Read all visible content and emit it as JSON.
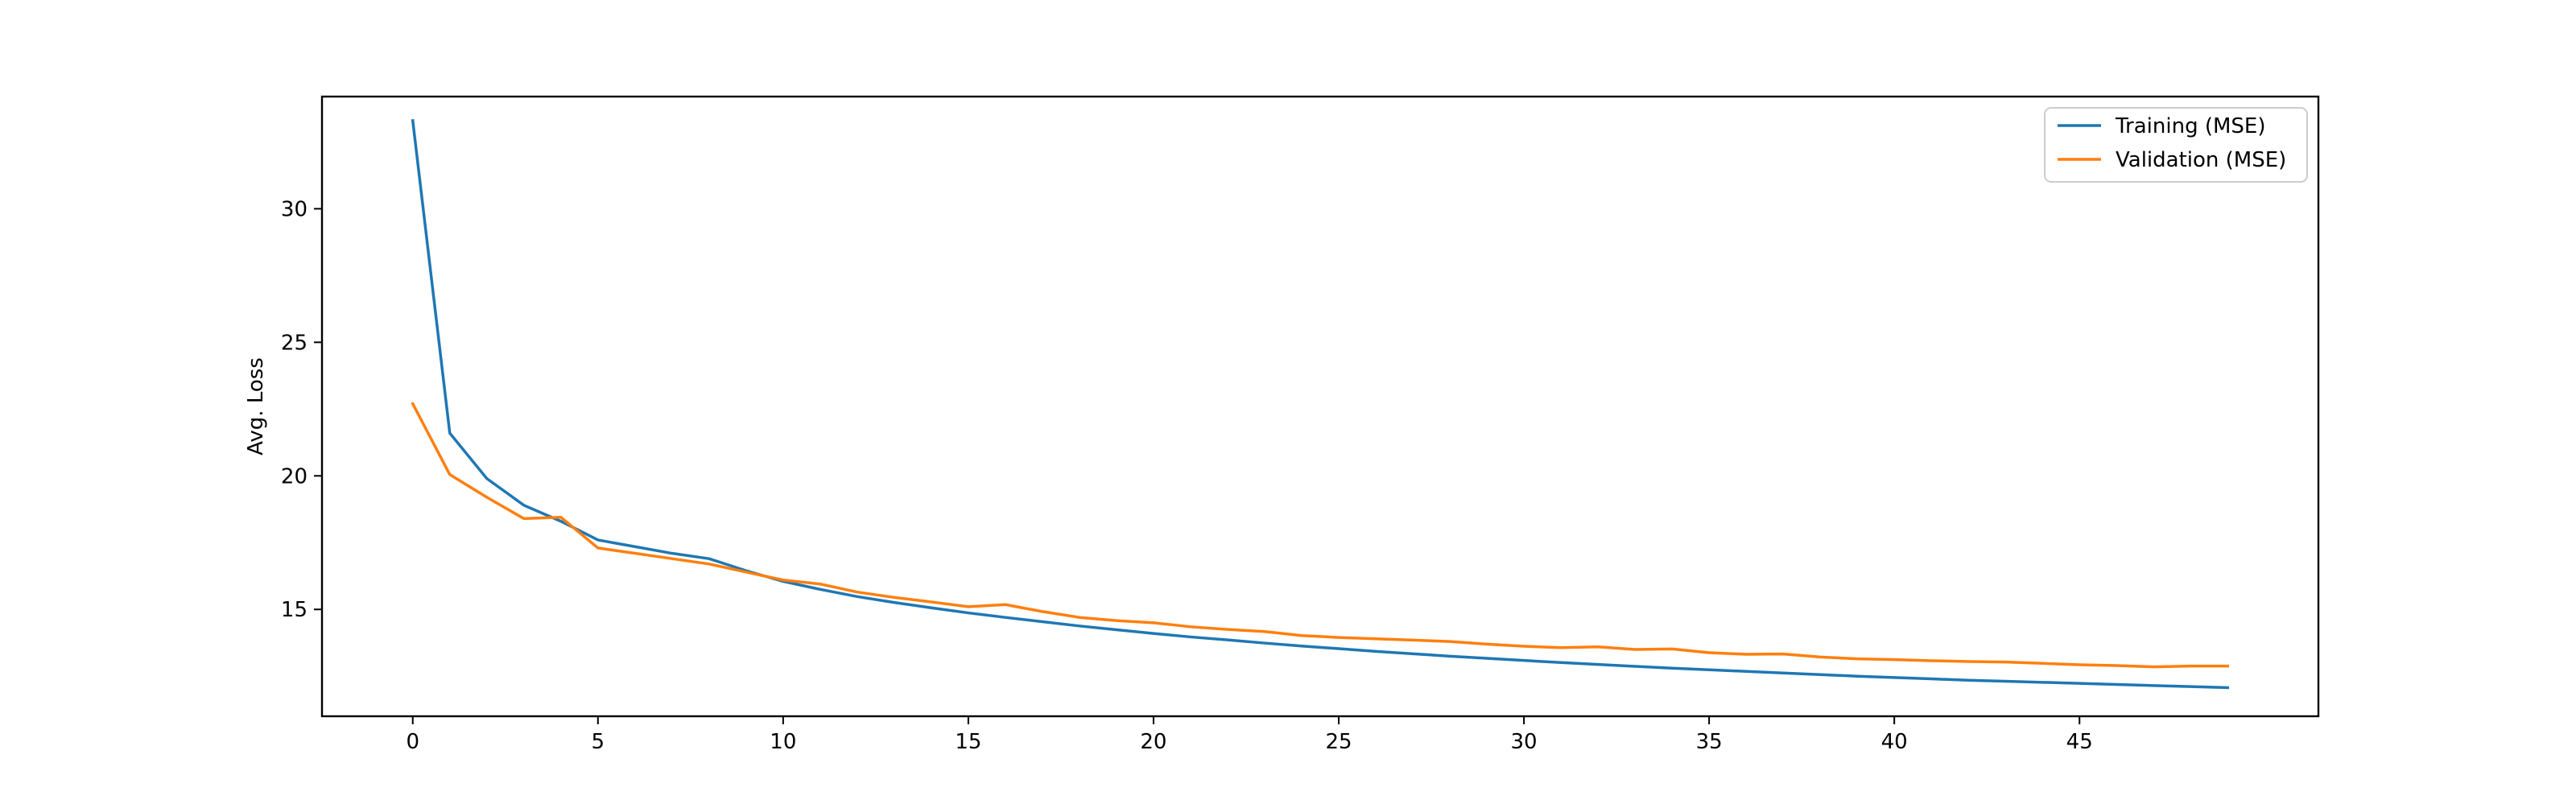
{
  "chart_data": {
    "type": "line",
    "title": "",
    "xlabel": "",
    "ylabel": "Avg. Loss",
    "xlim": [
      -2.45,
      51.45
    ],
    "ylim": [
      11.0,
      34.2
    ],
    "x_ticks": [
      0,
      5,
      10,
      15,
      20,
      25,
      30,
      35,
      40,
      45
    ],
    "y_ticks": [
      15,
      20,
      25,
      30
    ],
    "grid": false,
    "legend_position": "top-right",
    "x": [
      0,
      1,
      2,
      3,
      4,
      5,
      6,
      7,
      8,
      9,
      10,
      11,
      12,
      13,
      14,
      15,
      16,
      17,
      18,
      19,
      20,
      21,
      22,
      23,
      24,
      25,
      26,
      27,
      28,
      29,
      30,
      31,
      32,
      33,
      34,
      35,
      36,
      37,
      38,
      39,
      40,
      41,
      42,
      43,
      44,
      45,
      46,
      47,
      48,
      49
    ],
    "series": [
      {
        "name": "Training (MSE)",
        "color": "#1f77b4",
        "values": [
          33.3,
          21.6,
          19.9,
          18.9,
          18.3,
          17.6,
          17.35,
          17.1,
          16.9,
          16.45,
          16.05,
          15.75,
          15.48,
          15.26,
          15.06,
          14.87,
          14.7,
          14.54,
          14.38,
          14.24,
          14.1,
          13.97,
          13.86,
          13.74,
          13.63,
          13.53,
          13.43,
          13.34,
          13.25,
          13.17,
          13.09,
          13.01,
          12.94,
          12.87,
          12.8,
          12.74,
          12.68,
          12.62,
          12.56,
          12.5,
          12.45,
          12.4,
          12.35,
          12.31,
          12.27,
          12.23,
          12.19,
          12.15,
          12.11,
          12.07
        ]
      },
      {
        "name": "Validation (MSE)",
        "color": "#ff7f0e",
        "values": [
          22.7,
          20.05,
          19.2,
          18.4,
          18.45,
          17.3,
          17.1,
          16.9,
          16.7,
          16.4,
          16.1,
          15.95,
          15.65,
          15.45,
          15.28,
          15.1,
          15.18,
          14.92,
          14.7,
          14.58,
          14.5,
          14.35,
          14.25,
          14.17,
          14.02,
          13.95,
          13.9,
          13.85,
          13.8,
          13.7,
          13.62,
          13.57,
          13.6,
          13.5,
          13.52,
          13.38,
          13.32,
          13.33,
          13.22,
          13.15,
          13.12,
          13.08,
          13.05,
          13.03,
          12.98,
          12.93,
          12.9,
          12.85,
          12.88,
          12.88
        ]
      }
    ]
  }
}
